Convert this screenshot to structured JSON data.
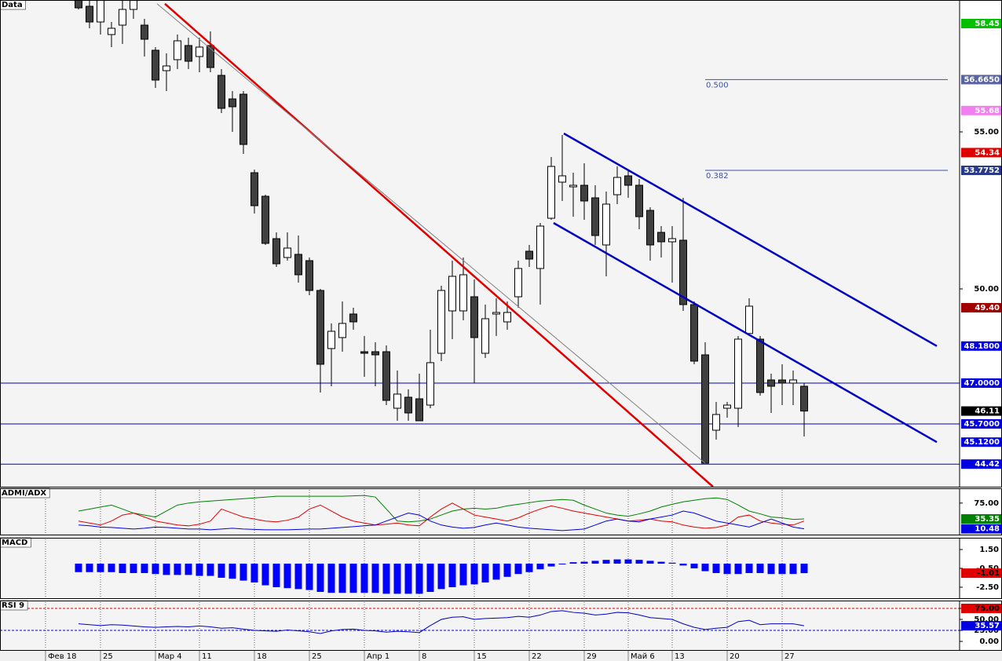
{
  "chart_data": [
    {
      "type": "candlestick",
      "title": "Data",
      "xlim": [
        -4.14,
        83.14
      ],
      "xticks": [
        {
          "value": 0,
          "label": "Фев 18"
        },
        {
          "value": 5,
          "label": "25"
        },
        {
          "value": 10,
          "label": "Мар 4"
        },
        {
          "value": 14,
          "label": "11"
        },
        {
          "value": 19,
          "label": "18"
        },
        {
          "value": 24,
          "label": "25"
        },
        {
          "value": 29,
          "label": "Апр 1"
        },
        {
          "value": 34,
          "label": "8"
        },
        {
          "value": 39,
          "label": "15"
        },
        {
          "value": 44,
          "label": "22"
        },
        {
          "value": 49,
          "label": "29"
        },
        {
          "value": 53,
          "label": "Май 6"
        },
        {
          "value": 57,
          "label": "13"
        },
        {
          "value": 62,
          "label": "20"
        },
        {
          "value": 67,
          "label": "27"
        }
      ],
      "ylim": [
        43.7,
        59.2
      ],
      "yticks": [
        {
          "value": 50,
          "label": "50.00"
        },
        {
          "value": 55,
          "label": "55.00"
        }
      ],
      "x": [
        3,
        4,
        5,
        6,
        7,
        8,
        9,
        10,
        11,
        12,
        13,
        14,
        15,
        16,
        17,
        18,
        19,
        20,
        21,
        22,
        23,
        24,
        25,
        26,
        27,
        28,
        29,
        30,
        31,
        32,
        33,
        34,
        35,
        36,
        37,
        38,
        39,
        40,
        41,
        42,
        43,
        44,
        45,
        46,
        47,
        48,
        49,
        50,
        51,
        52,
        53,
        54,
        55,
        56,
        57,
        58,
        59,
        60,
        61,
        62,
        63,
        64,
        65,
        66,
        67,
        68,
        69
      ],
      "open": [
        59.2,
        59.0,
        58.5,
        58.1,
        58.4,
        58.9,
        58.4,
        57.6,
        56.95,
        57.3,
        57.75,
        57.4,
        57.75,
        56.8,
        56.05,
        56.2,
        53.7,
        52.95,
        51.6,
        51.0,
        51.1,
        50.9,
        49.95,
        48.1,
        48.45,
        49.2,
        48.0,
        48.0,
        48.0,
        46.2,
        46.55,
        46.5,
        46.3,
        47.95,
        49.3,
        49.3,
        49.75,
        47.95,
        49.2,
        48.95,
        49.75,
        51.2,
        50.65,
        52.25,
        53.4,
        53.25,
        53.3,
        52.9,
        51.4,
        53.0,
        53.6,
        53.3,
        52.5,
        51.8,
        51.5,
        51.55,
        49.5,
        47.9,
        45.5,
        46.2,
        46.2,
        48.58,
        48.4,
        47.1,
        47.1,
        47.0,
        46.9
      ],
      "high": [
        59.2,
        59.2,
        59.2,
        58.5,
        59.2,
        59.2,
        58.6,
        57.7,
        57.5,
        58.1,
        58.0,
        58.0,
        58.2,
        57.0,
        56.3,
        56.3,
        53.8,
        53.0,
        51.8,
        51.8,
        51.7,
        51.0,
        50.0,
        48.9,
        49.6,
        49.4,
        48.5,
        48.3,
        48.2,
        47.4,
        46.8,
        47.3,
        48.7,
        50.1,
        50.9,
        51.0,
        50.3,
        49.5,
        49.7,
        49.6,
        50.9,
        51.4,
        52.1,
        54.2,
        54.9,
        53.7,
        54.0,
        53.3,
        53.1,
        53.9,
        53.8,
        53.5,
        52.6,
        52.0,
        52.0,
        52.9,
        49.6,
        48.3,
        46.4,
        46.4,
        48.5,
        49.7,
        48.5,
        47.3,
        47.6,
        47.4,
        47.0
      ],
      "low": [
        58.9,
        58.3,
        58.1,
        57.7,
        57.8,
        58.6,
        57.4,
        56.4,
        56.3,
        57.0,
        57.0,
        56.9,
        56.9,
        55.6,
        55.0,
        54.3,
        52.4,
        51.4,
        50.7,
        50.9,
        50.2,
        49.8,
        46.7,
        46.9,
        48.0,
        48.7,
        47.2,
        46.9,
        46.3,
        45.8,
        45.8,
        45.8,
        46.2,
        47.7,
        48.4,
        49.0,
        47.0,
        47.8,
        48.5,
        48.7,
        49.4,
        50.7,
        49.5,
        52.2,
        52.8,
        52.3,
        52.2,
        51.4,
        50.4,
        52.7,
        52.9,
        51.9,
        50.9,
        51.0,
        50.2,
        49.3,
        47.6,
        44.45,
        45.2,
        45.9,
        45.6,
        48.5,
        46.6,
        46.05,
        46.3,
        46.3,
        45.3
      ],
      "close": [
        58.95,
        58.5,
        59.2,
        58.3,
        58.9,
        59.2,
        57.95,
        56.65,
        57.1,
        57.9,
        57.25,
        57.7,
        57.05,
        55.75,
        55.8,
        54.6,
        52.65,
        51.45,
        50.8,
        51.3,
        50.45,
        49.95,
        47.6,
        48.65,
        48.9,
        48.95,
        47.95,
        47.9,
        46.45,
        46.65,
        46.05,
        45.8,
        47.65,
        49.95,
        50.4,
        50.45,
        48.45,
        49.05,
        49.25,
        49.25,
        50.65,
        50.95,
        52.0,
        53.9,
        53.6,
        53.3,
        52.8,
        51.7,
        52.7,
        53.55,
        53.3,
        52.3,
        51.4,
        51.5,
        51.6,
        49.5,
        47.7,
        44.45,
        46.0,
        46.3,
        48.4,
        49.45,
        46.7,
        46.9,
        47.0,
        47.1,
        46.11
      ],
      "hlines": [
        47.0,
        45.7,
        44.42
      ],
      "lines": [
        {
          "color": "#e00000",
          "width": 2.5,
          "points": [
            [
              10.86,
              59.08
            ],
            [
              60.71,
              43.7
            ]
          ]
        },
        {
          "color": "#808080",
          "width": 1,
          "points": [
            [
              10.14,
              59.08
            ],
            [
              60.0,
              44.45
            ]
          ]
        },
        {
          "color": "#0000c0",
          "width": 2.5,
          "points": [
            [
              47.14,
              54.95
            ],
            [
              81.07,
              48.18
            ]
          ]
        },
        {
          "color": "#0000c0",
          "width": 2.5,
          "points": [
            [
              46.21,
              52.1
            ],
            [
              81.07,
              45.12
            ]
          ]
        }
      ],
      "fib": [
        {
          "label": "0.500",
          "value": 56.665,
          "x": [
            60,
            82.07
          ]
        },
        {
          "label": "0.382",
          "value": 53.7752,
          "x": [
            60,
            82.07
          ]
        }
      ],
      "price_labels": [
        {
          "value": 58.45,
          "label": "58.45",
          "bg": "#00c000",
          "fg": "#ffffff"
        },
        {
          "value": 56.665,
          "label": "56.6650",
          "bg": "#5a64a0",
          "fg": "#ffffff"
        },
        {
          "value": 55.68,
          "label": "55.68",
          "bg": "#f080f0",
          "fg": "#ffffff"
        },
        {
          "value": 54.34,
          "label": "54.34",
          "bg": "#e00000",
          "fg": "#ffffff"
        },
        {
          "value": 53.7752,
          "label": "53.7752",
          "bg": "#2a3a8a",
          "fg": "#ffffff"
        },
        {
          "value": 49.4,
          "label": "49.40",
          "bg": "#a00000",
          "fg": "#ffffff"
        },
        {
          "value": 48.18,
          "label": "48.1800",
          "bg": "#0000e0",
          "fg": "#ffffff"
        },
        {
          "value": 47.0,
          "label": "47.0000",
          "bg": "#0000e0",
          "fg": "#ffffff"
        },
        {
          "value": 46.11,
          "label": "46.11",
          "bg": "#000000",
          "fg": "#ffffff"
        },
        {
          "value": 45.7,
          "label": "45.7000",
          "bg": "#0000e0",
          "fg": "#ffffff"
        },
        {
          "value": 45.12,
          "label": "45.1200",
          "bg": "#0000e0",
          "fg": "#ffffff"
        },
        {
          "value": 44.42,
          "label": "44.42",
          "bg": "#0000e0",
          "fg": "#ffffff"
        }
      ]
    },
    {
      "type": "line",
      "title": "ADMI/ADX",
      "ylim": [
        -4,
        112
      ],
      "yticks": [
        {
          "value": 75,
          "label": "75.00"
        }
      ],
      "x": [
        3,
        4,
        5,
        6,
        7,
        8,
        9,
        10,
        11,
        12,
        13,
        14,
        15,
        16,
        17,
        18,
        19,
        20,
        21,
        22,
        23,
        24,
        25,
        26,
        27,
        28,
        29,
        30,
        31,
        32,
        33,
        34,
        35,
        36,
        37,
        38,
        39,
        40,
        41,
        42,
        43,
        44,
        45,
        46,
        47,
        48,
        49,
        50,
        51,
        52,
        53,
        54,
        55,
        56,
        57,
        58,
        59,
        60,
        61,
        62,
        63,
        64,
        65,
        66,
        67,
        68,
        69
      ],
      "series": [
        {
          "color": "#008000",
          "values": [
            55,
            60,
            65,
            70,
            60,
            50,
            45,
            40,
            55,
            70,
            75,
            78,
            80,
            82,
            84,
            86,
            88,
            90,
            92,
            92,
            92,
            92,
            92,
            92,
            92,
            93,
            94,
            90,
            60,
            30,
            28,
            30,
            35,
            45,
            55,
            60,
            62,
            60,
            62,
            68,
            72,
            76,
            80,
            82,
            84,
            82,
            70,
            60,
            50,
            45,
            42,
            48,
            55,
            65,
            72,
            78,
            82,
            86,
            88,
            84,
            70,
            55,
            48,
            40,
            38,
            34,
            35.35
          ]
        },
        {
          "color": "#e00000",
          "values": [
            30,
            25,
            20,
            30,
            45,
            50,
            40,
            30,
            25,
            20,
            18,
            22,
            30,
            60,
            50,
            40,
            35,
            30,
            28,
            32,
            40,
            60,
            70,
            55,
            40,
            30,
            25,
            20,
            22,
            25,
            20,
            18,
            40,
            60,
            75,
            60,
            45,
            40,
            35,
            30,
            38,
            50,
            60,
            68,
            62,
            55,
            50,
            45,
            40,
            35,
            30,
            32,
            35,
            30,
            28,
            20,
            15,
            12,
            14,
            20,
            40,
            45,
            30,
            25,
            22,
            20,
            30
          ]
        },
        {
          "color": "#0000e0",
          "values": [
            20,
            18,
            15,
            14,
            12,
            10,
            12,
            15,
            14,
            12,
            10,
            10,
            8,
            10,
            12,
            10,
            9,
            8,
            8,
            8,
            9,
            10,
            10,
            12,
            14,
            16,
            18,
            20,
            30,
            40,
            50,
            45,
            30,
            20,
            15,
            12,
            14,
            20,
            25,
            20,
            15,
            12,
            10,
            8,
            6,
            8,
            10,
            20,
            30,
            35,
            30,
            28,
            35,
            40,
            45,
            55,
            50,
            40,
            30,
            25,
            20,
            15,
            25,
            35,
            25,
            15,
            10.48
          ]
        }
      ],
      "price_labels": [
        {
          "value": 35.35,
          "label": "35.35",
          "bg": "#008000",
          "fg": "#ffffff"
        },
        {
          "value": 10.48,
          "label": "10.48",
          "bg": "#0000e0",
          "fg": "#ffffff"
        }
      ]
    },
    {
      "type": "bar",
      "title": "MACD",
      "color": "#0000ff",
      "ylim": [
        -3.67,
        2.75
      ],
      "yticks": [
        {
          "value": 1.5,
          "label": "1.50"
        },
        {
          "value": -0.5,
          "label": "-0.50"
        },
        {
          "value": -2.5,
          "label": "-2.50"
        }
      ],
      "x": [
        3,
        4,
        5,
        6,
        7,
        8,
        9,
        10,
        11,
        12,
        13,
        14,
        15,
        16,
        17,
        18,
        19,
        20,
        21,
        22,
        23,
        24,
        25,
        26,
        27,
        28,
        29,
        30,
        31,
        32,
        33,
        34,
        35,
        36,
        37,
        38,
        39,
        40,
        41,
        42,
        43,
        44,
        45,
        46,
        47,
        48,
        49,
        50,
        51,
        52,
        53,
        54,
        55,
        56,
        57,
        58,
        59,
        60,
        61,
        62,
        63,
        64,
        65,
        66,
        67,
        68,
        69
      ],
      "values": [
        -0.9,
        -0.9,
        -0.9,
        -0.9,
        -1.0,
        -1.0,
        -1.0,
        -1.1,
        -1.2,
        -1.2,
        -1.2,
        -1.3,
        -1.3,
        -1.5,
        -1.6,
        -1.8,
        -2.0,
        -2.3,
        -2.5,
        -2.6,
        -2.7,
        -2.8,
        -3.0,
        -3.1,
        -3.1,
        -3.1,
        -3.1,
        -3.1,
        -3.2,
        -3.2,
        -3.2,
        -3.2,
        -3.0,
        -2.7,
        -2.5,
        -2.3,
        -2.2,
        -2.0,
        -1.7,
        -1.4,
        -1.1,
        -0.9,
        -0.6,
        -0.3,
        0.0,
        0.15,
        0.2,
        0.3,
        0.4,
        0.45,
        0.45,
        0.4,
        0.3,
        0.2,
        0.1,
        -0.2,
        -0.5,
        -0.8,
        -1.0,
        -1.1,
        -1.1,
        -1.0,
        -1.0,
        -1.1,
        -1.1,
        -1.1,
        -1.01
      ],
      "price_labels": [
        {
          "value": -1.01,
          "label": "-1.01",
          "bg": "#e00000",
          "fg": "#000000"
        }
      ]
    },
    {
      "type": "line",
      "title": "RSI 9",
      "ylim": [
        -19.6,
        92.9
      ],
      "yticks": [
        {
          "value": 0,
          "label": "0.00"
        },
        {
          "value": 25,
          "label": "25.00"
        },
        {
          "value": 50,
          "label": "50.00"
        },
        {
          "value": 75,
          "label": "75.00"
        }
      ],
      "ref_lines": [
        {
          "value": 75,
          "color": "#e00000"
        },
        {
          "value": 25,
          "color": "#0000e0"
        }
      ],
      "x": [
        3,
        4,
        5,
        6,
        7,
        8,
        9,
        10,
        11,
        12,
        13,
        14,
        15,
        16,
        17,
        18,
        19,
        20,
        21,
        22,
        23,
        24,
        25,
        26,
        27,
        28,
        29,
        30,
        31,
        32,
        33,
        34,
        35,
        36,
        37,
        38,
        39,
        40,
        41,
        42,
        43,
        44,
        45,
        46,
        47,
        48,
        49,
        50,
        51,
        52,
        53,
        54,
        55,
        56,
        57,
        58,
        59,
        60,
        61,
        62,
        63,
        64,
        65,
        66,
        67,
        68,
        69
      ],
      "series": [
        {
          "color": "#0000c0",
          "values": [
            40,
            38,
            36,
            38,
            37,
            35,
            33,
            32,
            33,
            34,
            33,
            35,
            33,
            30,
            31,
            28,
            25,
            24,
            23,
            26,
            24,
            22,
            18,
            24,
            27,
            28,
            25,
            24,
            21,
            23,
            22,
            20,
            36,
            50,
            55,
            56,
            50,
            52,
            53,
            54,
            57,
            55,
            60,
            68,
            70,
            66,
            64,
            60,
            62,
            66,
            65,
            60,
            54,
            52,
            50,
            40,
            32,
            27,
            30,
            32,
            45,
            48,
            38,
            40,
            40,
            40,
            35.57
          ]
        }
      ],
      "price_labels": [
        {
          "value": 75,
          "label": "75.00",
          "bg": "#e00000",
          "fg": "#000000"
        },
        {
          "value": 35.57,
          "label": "35.57",
          "bg": "#0000e0",
          "fg": "#ffffff"
        }
      ]
    }
  ]
}
